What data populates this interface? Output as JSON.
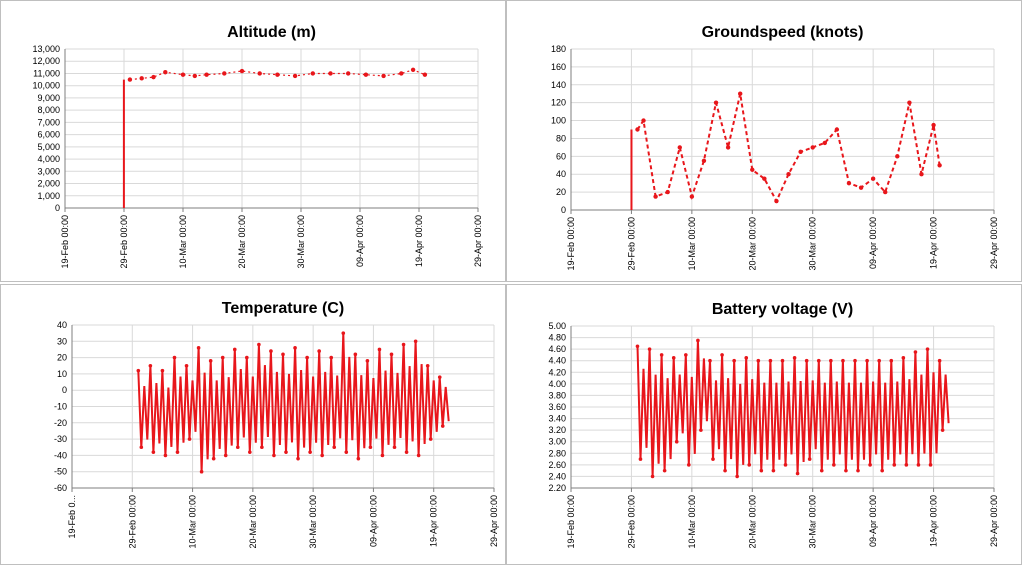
{
  "colors": {
    "series": "#e8161b",
    "grid": "#d9d9d9",
    "axis": "#7f7f7f",
    "panel_border": "#bfbfbf"
  },
  "chart_data": [
    {
      "id": "altitude",
      "type": "scatter",
      "title": "Altitude (m)",
      "x_ticks": [
        "19-Feb 00:00",
        "29-Feb 00:00",
        "10-Mar 00:00",
        "20-Mar 00:00",
        "30-Mar 00:00",
        "09-Apr 00:00",
        "19-Apr 00:00",
        "29-Apr 00:00"
      ],
      "y_ticks": [
        "0",
        "1,000",
        "2,000",
        "3,000",
        "4,000",
        "5,000",
        "6,000",
        "7,000",
        "8,000",
        "9,000",
        "10,000",
        "11,000",
        "12,000",
        "13,000"
      ],
      "xlim": [
        "19-Feb",
        "29-Apr"
      ],
      "ylim": [
        0,
        13000
      ],
      "grid": true,
      "x": [
        "01-Mar",
        "03-Mar",
        "05-Mar",
        "07-Mar",
        "10-Mar",
        "12-Mar",
        "14-Mar",
        "17-Mar",
        "20-Mar",
        "23-Mar",
        "26-Mar",
        "29-Mar",
        "01-Apr",
        "04-Apr",
        "07-Apr",
        "10-Apr",
        "13-Apr",
        "16-Apr",
        "18-Apr",
        "20-Apr"
      ],
      "y": [
        10500,
        10600,
        10700,
        11100,
        10900,
        10800,
        10900,
        11000,
        11200,
        11000,
        10900,
        10800,
        11000,
        11000,
        11000,
        10900,
        10800,
        11000,
        11300,
        10900
      ]
    },
    {
      "id": "groundspeed",
      "type": "scatter",
      "title": "Groundspeed (knots)",
      "x_ticks": [
        "19-Feb 00:00",
        "29-Feb 00:00",
        "10-Mar 00:00",
        "20-Mar 00:00",
        "30-Mar 00:00",
        "09-Apr 00:00",
        "19-Apr 00:00",
        "29-Apr 00:00"
      ],
      "y_ticks": [
        "0",
        "20",
        "40",
        "60",
        "80",
        "100",
        "120",
        "140",
        "160",
        "180"
      ],
      "xlim": [
        "19-Feb",
        "29-Apr"
      ],
      "ylim": [
        0,
        180
      ],
      "grid": true,
      "x": [
        "01-Mar",
        "02-Mar",
        "04-Mar",
        "06-Mar",
        "08-Mar",
        "10-Mar",
        "12-Mar",
        "14-Mar",
        "16-Mar",
        "18-Mar",
        "20-Mar",
        "22-Mar",
        "24-Mar",
        "26-Mar",
        "28-Mar",
        "30-Mar",
        "01-Apr",
        "03-Apr",
        "05-Apr",
        "07-Apr",
        "09-Apr",
        "11-Apr",
        "13-Apr",
        "15-Apr",
        "17-Apr",
        "19-Apr",
        "20-Apr"
      ],
      "y": [
        90,
        100,
        15,
        20,
        70,
        15,
        55,
        120,
        70,
        130,
        45,
        35,
        10,
        40,
        65,
        70,
        75,
        90,
        30,
        25,
        35,
        20,
        60,
        120,
        40,
        95,
        50
      ]
    },
    {
      "id": "temperature",
      "type": "line",
      "title": "Temperature (C)",
      "x_ticks": [
        "19-Feb 0...",
        "29-Feb 00:00",
        "10-Mar 00:00",
        "20-Mar 00:00",
        "30-Mar 00:00",
        "09-Apr 00:00",
        "19-Apr 00:00",
        "29-Apr 00:00"
      ],
      "y_ticks": [
        "-60",
        "-50",
        "-40",
        "-30",
        "-20",
        "-10",
        "0",
        "10",
        "20",
        "30",
        "40"
      ],
      "xlim": [
        "19-Feb",
        "29-Apr"
      ],
      "ylim": [
        -60,
        40
      ],
      "grid": true,
      "x": [
        "01-Mar",
        "03-Mar",
        "05-Mar",
        "07-Mar",
        "09-Mar",
        "11-Mar",
        "13-Mar",
        "15-Mar",
        "17-Mar",
        "19-Mar",
        "21-Mar",
        "23-Mar",
        "25-Mar",
        "27-Mar",
        "29-Mar",
        "31-Mar",
        "02-Apr",
        "04-Apr",
        "06-Apr",
        "08-Apr",
        "10-Apr",
        "12-Apr",
        "14-Apr",
        "16-Apr",
        "18-Apr",
        "20-Apr"
      ],
      "high": [
        12,
        15,
        12,
        20,
        15,
        26,
        18,
        20,
        25,
        20,
        28,
        24,
        22,
        26,
        20,
        24,
        20,
        35,
        22,
        18,
        25,
        22,
        28,
        30,
        15,
        8
      ],
      "low": [
        -35,
        -38,
        -40,
        -38,
        -30,
        -50,
        -42,
        -40,
        -35,
        -38,
        -35,
        -40,
        -38,
        -42,
        -38,
        -40,
        -35,
        -38,
        -42,
        -35,
        -40,
        -35,
        -38,
        -40,
        -30,
        -22
      ]
    },
    {
      "id": "battery",
      "type": "line",
      "title": "Battery voltage (V)",
      "x_ticks": [
        "19-Feb 00:00",
        "29-Feb 00:00",
        "10-Mar 00:00",
        "20-Mar 00:00",
        "30-Mar 00:00",
        "09-Apr 00:00",
        "19-Apr 00:00",
        "29-Apr 00:00"
      ],
      "y_ticks": [
        "2.20",
        "2.40",
        "2.60",
        "2.80",
        "3.00",
        "3.20",
        "3.40",
        "3.60",
        "3.80",
        "4.00",
        "4.20",
        "4.40",
        "4.60",
        "4.80",
        "5.00"
      ],
      "xlim": [
        "19-Feb",
        "29-Apr"
      ],
      "ylim": [
        2.2,
        5.0
      ],
      "grid": true,
      "x": [
        "01-Mar",
        "03-Mar",
        "05-Mar",
        "07-Mar",
        "09-Mar",
        "11-Mar",
        "13-Mar",
        "15-Mar",
        "17-Mar",
        "19-Mar",
        "21-Mar",
        "23-Mar",
        "25-Mar",
        "27-Mar",
        "29-Mar",
        "31-Mar",
        "02-Apr",
        "04-Apr",
        "06-Apr",
        "08-Apr",
        "10-Apr",
        "12-Apr",
        "14-Apr",
        "16-Apr",
        "18-Apr",
        "20-Apr"
      ],
      "high": [
        4.65,
        4.6,
        4.5,
        4.45,
        4.5,
        4.75,
        4.4,
        4.5,
        4.4,
        4.45,
        4.4,
        4.4,
        4.4,
        4.45,
        4.4,
        4.4,
        4.4,
        4.4,
        4.4,
        4.4,
        4.4,
        4.4,
        4.45,
        4.55,
        4.6,
        4.4
      ],
      "low": [
        2.7,
        2.4,
        2.5,
        3.0,
        2.6,
        3.2,
        2.7,
        2.5,
        2.4,
        2.6,
        2.5,
        2.5,
        2.6,
        2.45,
        2.7,
        2.5,
        2.6,
        2.5,
        2.5,
        2.6,
        2.5,
        2.6,
        2.6,
        2.6,
        2.6,
        3.2
      ]
    }
  ]
}
